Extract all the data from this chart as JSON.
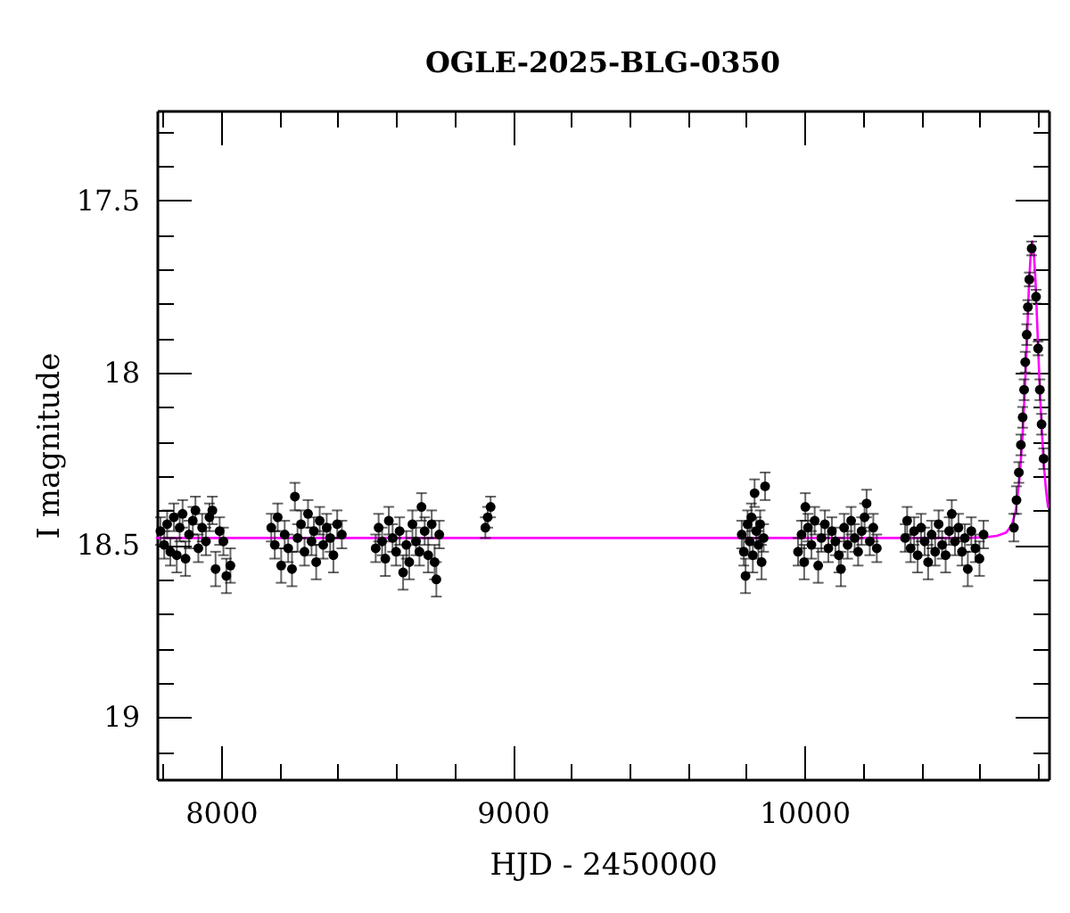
{
  "chart_data": {
    "type": "scatter",
    "title": "OGLE-2025-BLG-0350",
    "xlabel": "HJD - 2450000",
    "ylabel": "I magnitude",
    "xlim": [
      7780,
      10837
    ],
    "ylim": [
      19.18,
      17.24
    ],
    "xticks": [
      {
        "value": 7800,
        "label": null
      },
      8000,
      {
        "value": 8200,
        "label": null
      },
      {
        "value": 8400,
        "label": null
      },
      {
        "value": 8600,
        "label": null
      },
      {
        "value": 8800,
        "label": null
      },
      9000,
      {
        "value": 9200,
        "label": null
      },
      {
        "value": 9400,
        "label": null
      },
      {
        "value": 9600,
        "label": null
      },
      {
        "value": 9800,
        "label": null
      },
      10000,
      {
        "value": 10200,
        "label": null
      },
      {
        "value": 10400,
        "label": null
      },
      {
        "value": 10600,
        "label": null
      },
      {
        "value": 10800,
        "label": null
      }
    ],
    "yticks": [
      {
        "value": 17.3,
        "label": null
      },
      {
        "value": 17.4,
        "label": null
      },
      17.5,
      {
        "value": 17.6,
        "label": null
      },
      {
        "value": 17.7,
        "label": null
      },
      {
        "value": 17.8,
        "label": null
      },
      {
        "value": 17.9,
        "label": null
      },
      18,
      {
        "value": 18.1,
        "label": null
      },
      {
        "value": 18.2,
        "label": null
      },
      {
        "value": 18.3,
        "label": null
      },
      {
        "value": 18.4,
        "label": null
      },
      18.5,
      {
        "value": 18.6,
        "label": null
      },
      {
        "value": 18.7,
        "label": null
      },
      {
        "value": 18.8,
        "label": null
      },
      {
        "value": 18.9,
        "label": null
      },
      19,
      {
        "value": 19.1,
        "label": null
      }
    ],
    "series": [
      {
        "type": "line",
        "color": "#ff00ff",
        "x": [
          7780,
          10550,
          10620,
          10660,
          10690,
          10710,
          10725,
          10738,
          10748,
          10756,
          10763,
          10770,
          10776,
          10781,
          10786,
          10792,
          10798,
          10805,
          10812,
          10820,
          10828,
          10835
        ],
        "values": [
          18.48,
          18.48,
          18.478,
          18.474,
          18.465,
          18.445,
          18.4,
          18.3,
          18.18,
          18.04,
          17.9,
          17.74,
          17.65,
          17.62,
          17.65,
          17.73,
          17.86,
          18.01,
          18.14,
          18.26,
          18.34,
          18.39
        ]
      },
      {
        "color": "#000000",
        "marker": "circle",
        "x": [
          7792,
          7805,
          7815,
          7826,
          7838,
          7848,
          7858,
          7868,
          7878,
          7890,
          7903,
          7912,
          7922,
          7935,
          7948,
          7960,
          7970,
          7981,
          7995,
          8008,
          8018,
          8032,
          8172,
          8184,
          8194,
          8206,
          8218,
          8230,
          8243,
          8253,
          8262,
          8274,
          8286,
          8298,
          8310,
          8318,
          8326,
          8338,
          8350,
          8362,
          8374,
          8385,
          8398,
          8414,
          8530,
          8540,
          8552,
          8563,
          8575,
          8588,
          8600,
          8612,
          8624,
          8635,
          8645,
          8656,
          8668,
          8680,
          8687,
          8698,
          8710,
          8722,
          8732,
          8738,
          8748,
          8906,
          8914,
          8924,
          9785,
          9792,
          9798,
          9805,
          9812,
          9818,
          9823,
          9829,
          9835,
          9842,
          9848,
          9853,
          9860,
          9865,
          9978,
          9990,
          9999,
          10003,
          10012,
          10024,
          10035,
          10047,
          10058,
          10070,
          10082,
          10094,
          10106,
          10118,
          10125,
          10136,
          10148,
          10160,
          10172,
          10184,
          10196,
          10206,
          10213,
          10224,
          10236,
          10248,
          10345,
          10352,
          10364,
          10376,
          10388,
          10400,
          10412,
          10424,
          10436,
          10448,
          10460,
          10472,
          10484,
          10496,
          10505,
          10516,
          10528,
          10540,
          10550,
          10560,
          10572,
          10586,
          10600,
          10614,
          10718,
          10727,
          10735,
          10742,
          10748,
          10753,
          10757,
          10762,
          10766,
          10771,
          10779,
          10794,
          10801,
          10807,
          10813,
          10820
        ],
        "values": [
          18.46,
          18.5,
          18.44,
          18.52,
          18.42,
          18.53,
          18.45,
          18.41,
          18.54,
          18.47,
          18.43,
          18.4,
          18.51,
          18.45,
          18.49,
          18.42,
          18.4,
          18.57,
          18.46,
          18.49,
          18.59,
          18.56,
          18.45,
          18.5,
          18.42,
          18.56,
          18.47,
          18.51,
          18.57,
          18.36,
          18.48,
          18.44,
          18.52,
          18.41,
          18.49,
          18.46,
          18.55,
          18.43,
          18.5,
          18.45,
          18.48,
          18.53,
          18.44,
          18.47,
          18.51,
          18.45,
          18.49,
          18.54,
          18.43,
          18.48,
          18.52,
          18.46,
          18.58,
          18.5,
          18.55,
          18.44,
          18.49,
          18.52,
          18.39,
          18.46,
          18.53,
          18.44,
          18.55,
          18.6,
          18.47,
          18.45,
          18.42,
          18.39,
          18.47,
          18.52,
          18.59,
          18.44,
          18.49,
          18.42,
          18.53,
          18.35,
          18.46,
          18.5,
          18.44,
          18.55,
          18.48,
          18.33,
          18.52,
          18.47,
          18.55,
          18.39,
          18.45,
          18.5,
          18.43,
          18.56,
          18.48,
          18.44,
          18.51,
          18.46,
          18.49,
          18.53,
          18.57,
          18.45,
          18.5,
          18.43,
          18.48,
          18.52,
          18.46,
          18.42,
          18.38,
          18.49,
          18.45,
          18.51,
          18.48,
          18.43,
          18.51,
          18.46,
          18.53,
          18.45,
          18.49,
          18.55,
          18.47,
          18.52,
          18.44,
          18.5,
          18.53,
          18.46,
          18.41,
          18.49,
          18.45,
          18.52,
          18.48,
          18.57,
          18.46,
          18.51,
          18.54,
          18.47,
          18.45,
          18.37,
          18.29,
          18.21,
          18.13,
          18.05,
          17.97,
          17.89,
          17.81,
          17.73,
          17.64,
          17.78,
          17.93,
          18.05,
          18.15,
          18.25
        ],
        "errors": [
          0.04,
          0.04,
          0.04,
          0.04,
          0.04,
          0.05,
          0.04,
          0.04,
          0.05,
          0.04,
          0.04,
          0.04,
          0.04,
          0.04,
          0.04,
          0.04,
          0.04,
          0.05,
          0.04,
          0.04,
          0.05,
          0.05,
          0.04,
          0.04,
          0.04,
          0.05,
          0.04,
          0.04,
          0.05,
          0.04,
          0.04,
          0.04,
          0.04,
          0.04,
          0.04,
          0.04,
          0.05,
          0.04,
          0.04,
          0.04,
          0.04,
          0.05,
          0.04,
          0.04,
          0.04,
          0.04,
          0.04,
          0.05,
          0.04,
          0.04,
          0.04,
          0.04,
          0.05,
          0.04,
          0.05,
          0.04,
          0.04,
          0.04,
          0.04,
          0.04,
          0.05,
          0.04,
          0.05,
          0.05,
          0.04,
          0.03,
          0.03,
          0.03,
          0.04,
          0.04,
          0.05,
          0.04,
          0.04,
          0.04,
          0.05,
          0.04,
          0.04,
          0.04,
          0.04,
          0.05,
          0.04,
          0.04,
          0.04,
          0.04,
          0.05,
          0.04,
          0.04,
          0.04,
          0.04,
          0.05,
          0.04,
          0.04,
          0.04,
          0.04,
          0.04,
          0.05,
          0.05,
          0.04,
          0.04,
          0.04,
          0.04,
          0.04,
          0.04,
          0.04,
          0.04,
          0.04,
          0.04,
          0.04,
          0.04,
          0.04,
          0.04,
          0.04,
          0.05,
          0.04,
          0.04,
          0.05,
          0.04,
          0.04,
          0.04,
          0.04,
          0.05,
          0.04,
          0.04,
          0.04,
          0.04,
          0.04,
          0.04,
          0.05,
          0.04,
          0.04,
          0.05,
          0.04,
          0.04,
          0.04,
          0.03,
          0.03,
          0.03,
          0.03,
          0.03,
          0.03,
          0.02,
          0.02,
          0.02,
          0.02,
          0.02,
          0.03,
          0.03,
          0.03
        ]
      }
    ]
  }
}
